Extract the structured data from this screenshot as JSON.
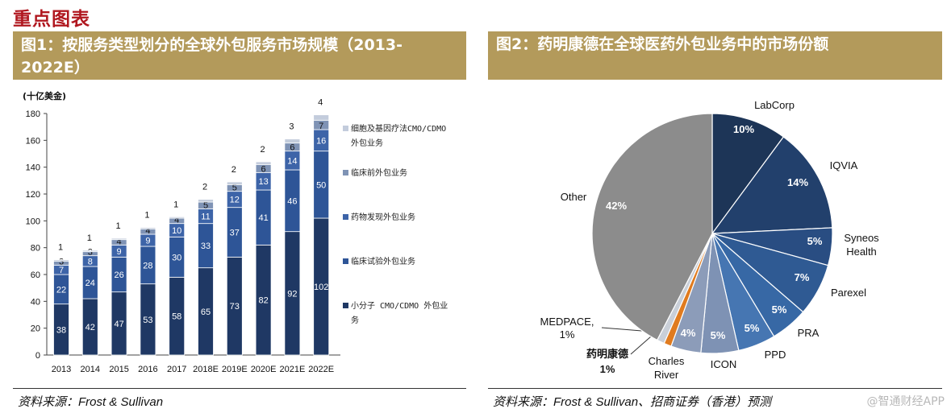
{
  "heading": "重点图表",
  "figure1": {
    "title": "图1：按服务类型划分的全球外包服务市场规模（2013-2022E）",
    "source": "资料来源：Frost & Sullivan"
  },
  "figure2": {
    "title": "图2：药明康德在全球医药外包业务中的市场份额",
    "source": "资料来源：Frost & Sullivan、招商证券（香港）预测"
  },
  "watermark": "@智通财经APP",
  "colors": {
    "title_bg": "#b39a5b",
    "heading": "#b0171f",
    "series": [
      "#1f3864",
      "#2e5597",
      "#3d64a8",
      "#7f93b5",
      "#c3ccdc"
    ]
  },
  "chart_data": [
    {
      "type": "bar",
      "stacked": true,
      "ylabel": "(十亿美金)",
      "ylim": [
        0,
        180
      ],
      "yticks": [
        0,
        20,
        40,
        60,
        80,
        100,
        120,
        140,
        160,
        180
      ],
      "categories": [
        "2013",
        "2014",
        "2015",
        "2016",
        "2017",
        "2018E",
        "2019E",
        "2020E",
        "2021E",
        "2022E"
      ],
      "series": [
        {
          "name": "小分子 CMO/CDMO 外包业务",
          "values": [
            38,
            42,
            47,
            53,
            58,
            65,
            73,
            82,
            92,
            102
          ]
        },
        {
          "name": "临床试验外包业务",
          "values": [
            22,
            24,
            26,
            28,
            30,
            33,
            37,
            41,
            46,
            50
          ]
        },
        {
          "name": "药物发现外包业务",
          "values": [
            7,
            8,
            9,
            9,
            10,
            11,
            12,
            13,
            14,
            16
          ]
        },
        {
          "name": "临床前外包业务",
          "values": [
            3,
            3,
            4,
            4,
            4,
            5,
            5,
            6,
            6,
            7
          ]
        },
        {
          "name": "细胞及基因疗法CMO/CDMO外包业务",
          "values": [
            1,
            1,
            1,
            1,
            1,
            2,
            2,
            2,
            3,
            4
          ]
        }
      ],
      "legend_position": "right"
    },
    {
      "type": "pie",
      "slices": [
        {
          "label": "LabCorp",
          "value": 10,
          "value_label": "10%"
        },
        {
          "label": "IQVIA",
          "value": 14,
          "value_label": "14%"
        },
        {
          "label": "Syneos Health",
          "value": 5,
          "value_label": "5%"
        },
        {
          "label": "Parexel",
          "value": 7,
          "value_label": "7%"
        },
        {
          "label": "PRA",
          "value": 5,
          "value_label": "5%"
        },
        {
          "label": "PPD",
          "value": 5,
          "value_label": "5%"
        },
        {
          "label": "ICON",
          "value": 5,
          "value_label": "5%"
        },
        {
          "label": "Charles River",
          "value": 4,
          "value_label": "4%"
        },
        {
          "label": "药明康德",
          "value": 1,
          "value_label": "1%"
        },
        {
          "label": "MEDPACE",
          "value": 1,
          "value_label": "1%"
        },
        {
          "label": "Other",
          "value": 42,
          "value_label": "42%"
        }
      ]
    }
  ]
}
